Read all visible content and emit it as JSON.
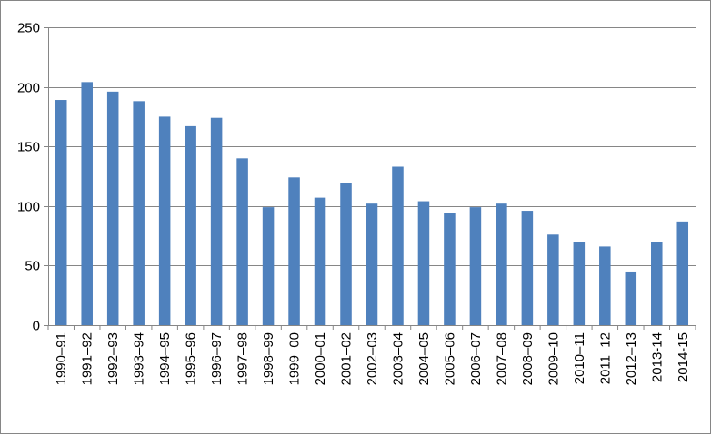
{
  "chart_data": {
    "type": "bar",
    "title": "",
    "xlabel": "",
    "ylabel": "",
    "categories": [
      "1990–91",
      "1991–92",
      "1992–93",
      "1993–94",
      "1994–95",
      "1995–96",
      "1996–97",
      "1997–98",
      "1998–99",
      "1999–00",
      "2000–01",
      "2001–02",
      "2002–03",
      "2003–04",
      "2004–05",
      "2005–06",
      "2006–07",
      "2007–08",
      "2008–09",
      "2009–10",
      "2010–11",
      "2011–12",
      "2012–13",
      "2013-14",
      "2014-15"
    ],
    "values": [
      189,
      204,
      196,
      188,
      175,
      167,
      174,
      140,
      99,
      124,
      107,
      119,
      102,
      133,
      104,
      94,
      99,
      102,
      96,
      76,
      70,
      66,
      45,
      70,
      87
    ],
    "ylim": [
      0,
      250
    ],
    "yticks": [
      0,
      50,
      100,
      150,
      200,
      250
    ],
    "ytick_labels": [
      "0",
      "50",
      "100",
      "150",
      "200",
      "250"
    ],
    "grid": true,
    "legend": "none",
    "bar_color": "#4F81BD"
  }
}
